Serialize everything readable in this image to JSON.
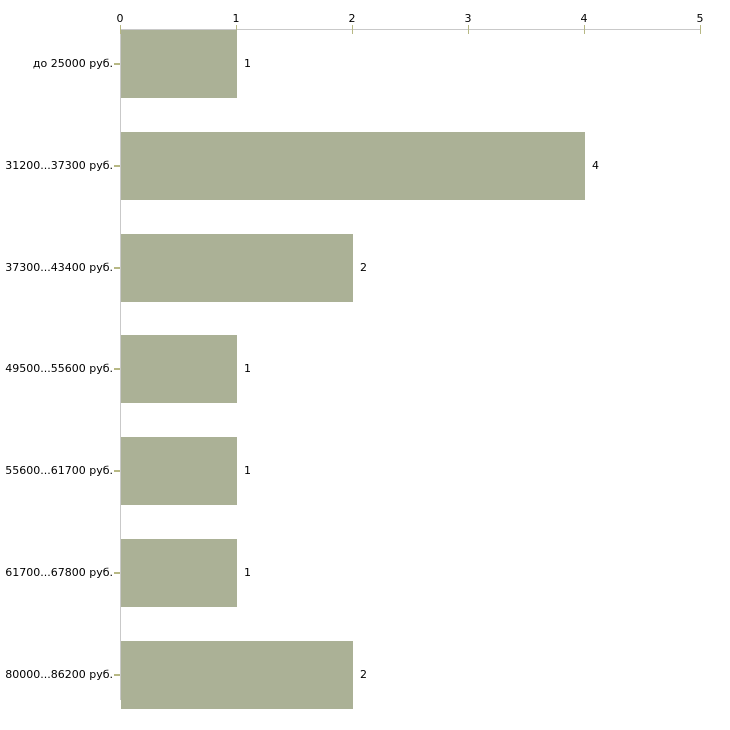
{
  "chart_data": {
    "type": "bar",
    "orientation": "horizontal",
    "title": "",
    "xlabel": "",
    "ylabel": "",
    "categories": [
      "до 25000 руб.",
      "31200...37300 руб.",
      "37300...43400 руб.",
      "49500...55600 руб.",
      "55600...61700 руб.",
      "61700...67800 руб.",
      "80000...86200 руб."
    ],
    "values": [
      1,
      4,
      2,
      1,
      1,
      1,
      2
    ],
    "value_labels": [
      "1",
      "4",
      "2",
      "1",
      "1",
      "1",
      "2"
    ],
    "x_ticks": [
      "0",
      "1",
      "2",
      "3",
      "4",
      "5"
    ],
    "xlim": [
      0,
      5
    ],
    "grid": false,
    "legend": false,
    "axis_position": "top",
    "colors": {
      "bar_fill": "#abb196",
      "axis_line": "#c9c9c9",
      "tick_mark": "#b7b884",
      "text": "#000000",
      "background": "#ffffff"
    }
  }
}
